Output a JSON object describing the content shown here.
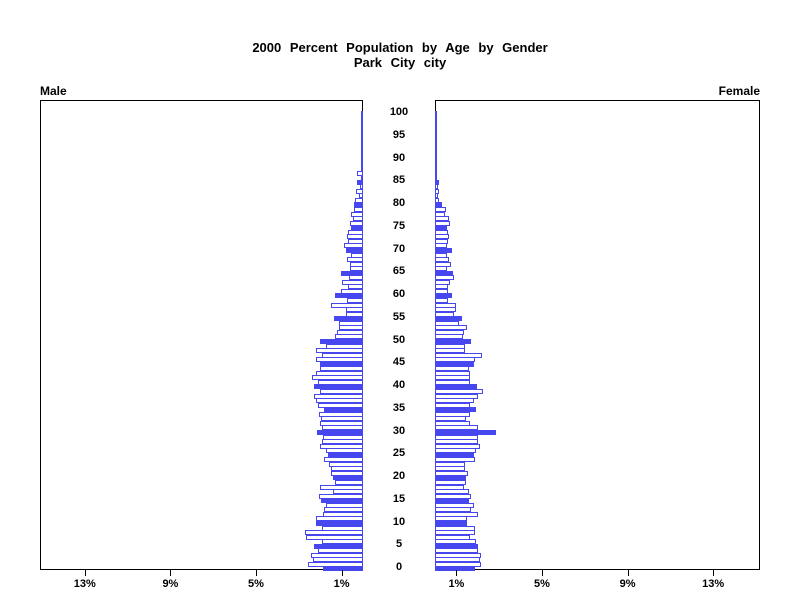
{
  "title": {
    "line1": "2000 Percent Population by Age by Gender",
    "line2": "Park City city"
  },
  "panels": {
    "male_label": "Male",
    "female_label": "Female"
  },
  "colors": {
    "bar_blue": "#4747EF",
    "axis_black": "#000000",
    "background": "#FFFFFF"
  },
  "chart_data": {
    "type": "bar",
    "subtype": "population-pyramid",
    "title": "2000 Percent Population by Age by Gender",
    "subtitle": "Park City city",
    "orientation": "horizontal, male bars extend left from center spine, female bars extend right",
    "x_axis": {
      "unit": "percent of population",
      "ticks_left": [
        {
          "label": "13%",
          "pct": 13
        },
        {
          "label": "9%",
          "pct": 9
        },
        {
          "label": "5%",
          "pct": 5
        },
        {
          "label": "1%",
          "pct": 1
        }
      ],
      "ticks_right": [
        {
          "label": "1%",
          "pct": 1
        },
        {
          "label": "5%",
          "pct": 5
        },
        {
          "label": "9%",
          "pct": 9
        },
        {
          "label": "13%",
          "pct": 13
        }
      ],
      "max_pct_per_side": 15.1
    },
    "y_axis": {
      "unit": "age in single years, 0 bottom to 100 top",
      "tick_labels": [
        0,
        5,
        10,
        15,
        20,
        25,
        30,
        35,
        40,
        45,
        50,
        55,
        60,
        65,
        70,
        75,
        80,
        85,
        90,
        95,
        100
      ]
    },
    "highlight_rule": "bars for ages divisible by 5 are solid blue; all other bars are white with blue outline",
    "ages": "0-100 single-year bins",
    "series": [
      {
        "name": "Male",
        "values_pct_age_0_to_100": [
          1.85,
          2.55,
          2.35,
          2.45,
          2.1,
          2.3,
          1.9,
          2.65,
          2.7,
          1.9,
          2.2,
          2.2,
          1.85,
          1.8,
          1.75,
          1.95,
          2.05,
          1.4,
          2.0,
          1.3,
          1.4,
          1.5,
          1.5,
          1.6,
          1.8,
          1.65,
          1.75,
          2.0,
          1.9,
          1.85,
          2.15,
          1.9,
          2.0,
          1.95,
          2.05,
          1.8,
          2.1,
          2.2,
          2.3,
          2.0,
          2.3,
          2.1,
          2.4,
          2.2,
          2.0,
          2.0,
          2.2,
          1.9,
          2.2,
          1.75,
          2.0,
          1.3,
          1.2,
          1.1,
          1.1,
          1.35,
          0.8,
          0.8,
          1.5,
          0.75,
          1.3,
          1.05,
          0.7,
          1.0,
          0.65,
          1.05,
          0.6,
          0.6,
          0.75,
          0.55,
          0.8,
          0.9,
          0.7,
          0.75,
          0.7,
          0.55,
          0.6,
          0.45,
          0.55,
          0.42,
          0.42,
          0.37,
          0.2,
          0.33,
          0.15,
          0.28,
          0.1,
          0.28,
          0.05,
          0.1,
          0.05,
          0.04,
          0.03,
          0.02,
          0.02,
          0.02,
          0.01,
          0.01,
          0.01,
          0.01,
          0.01
        ]
      },
      {
        "name": "Female",
        "values_pct_age_0_to_100": [
          1.85,
          2.15,
          2.1,
          2.15,
          2.0,
          2.0,
          1.9,
          1.65,
          1.85,
          1.85,
          1.5,
          1.5,
          2.0,
          1.7,
          1.8,
          1.6,
          1.7,
          1.6,
          1.35,
          1.45,
          1.45,
          1.55,
          1.4,
          1.4,
          1.85,
          1.8,
          1.9,
          2.1,
          2.0,
          2.0,
          2.85,
          2.0,
          1.65,
          1.45,
          1.65,
          1.9,
          1.65,
          1.8,
          2.0,
          2.25,
          1.95,
          1.65,
          1.65,
          1.65,
          1.6,
          1.8,
          1.85,
          2.2,
          1.4,
          1.4,
          1.7,
          1.33,
          1.37,
          1.5,
          1.1,
          1.25,
          0.9,
          1.0,
          1.0,
          0.6,
          0.8,
          0.63,
          0.63,
          0.72,
          0.9,
          0.85,
          0.58,
          0.77,
          0.67,
          0.58,
          0.8,
          0.58,
          0.63,
          0.67,
          0.63,
          0.58,
          0.72,
          0.65,
          0.45,
          0.5,
          0.35,
          0.2,
          0.16,
          0.2,
          0.16,
          0.2,
          0.1,
          0.08,
          0.05,
          0.08,
          0.1,
          0.03,
          0.05,
          0.02,
          0.02,
          0.02,
          0.01,
          0.01,
          0.01,
          0.01,
          0.01
        ]
      }
    ],
    "legend": "none",
    "grid": "off"
  }
}
